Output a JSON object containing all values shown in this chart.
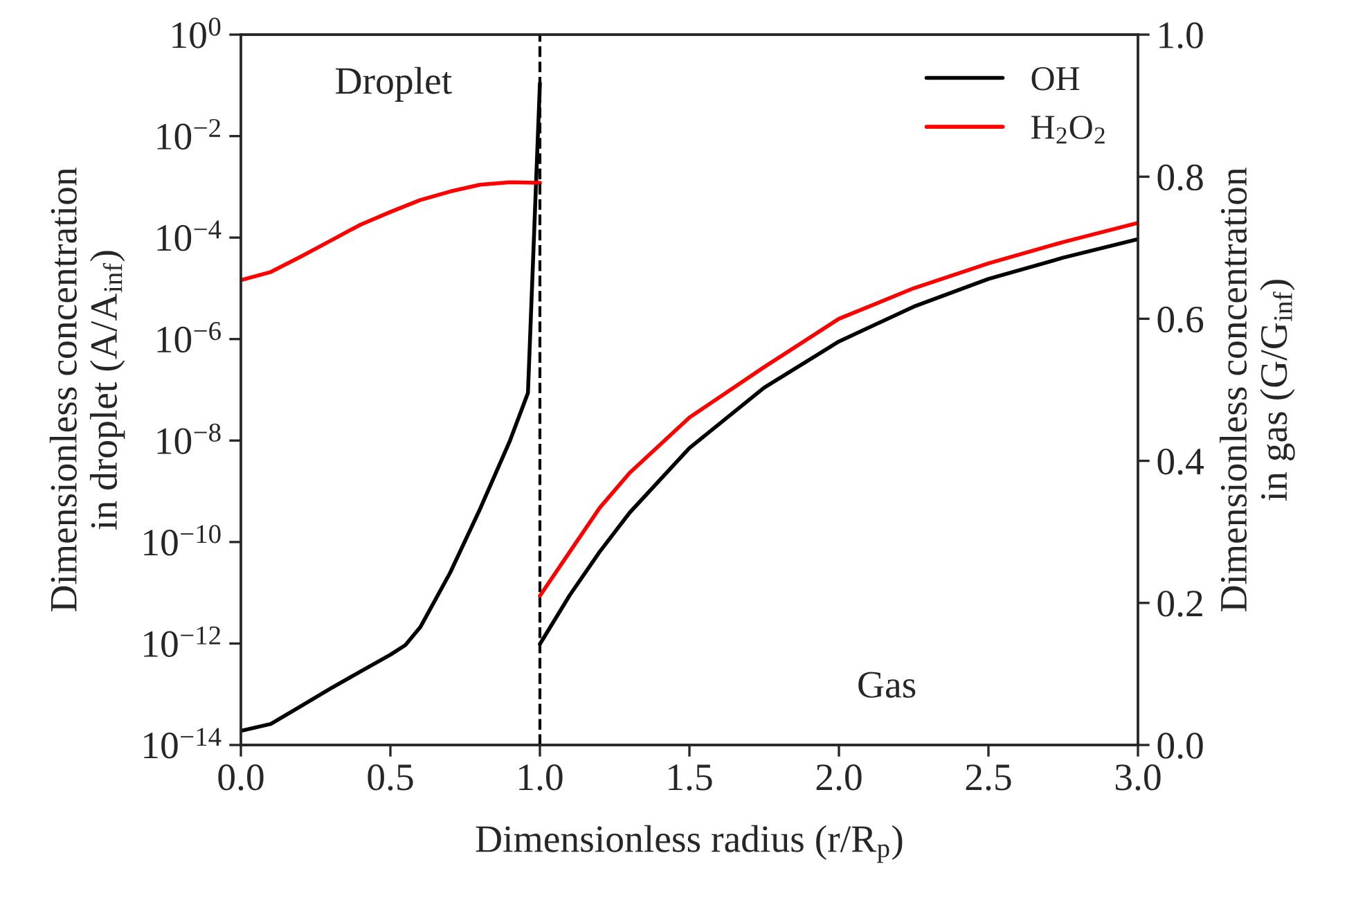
{
  "chart_data": {
    "type": "line",
    "xlabel": "Dimensionless radius (r/R$_{p}$)",
    "ylabel": "Dimensionless concentration\nin droplet (A/A$_{inf}$)",
    "y2label": "Dimensionless concentration\nin gas (G/G$_{inf}$)",
    "log": "y",
    "xlim": [
      0.0,
      3.0
    ],
    "xticks": [
      {
        "value": 0,
        "label": "0.0"
      },
      0.5,
      {
        "value": 1,
        "label": "1.0"
      },
      1.5,
      {
        "value": 2,
        "label": "2.0"
      },
      2.5,
      {
        "value": 3,
        "label": "3.0"
      }
    ],
    "ylim": [
      1e-14,
      1
    ],
    "yticks": [
      {
        "value": 1e-14,
        "label": "10$^{−14}$"
      },
      {
        "value": 1e-12,
        "label": "10$^{−12}$"
      },
      {
        "value": 1e-10,
        "label": "10$^{−10}$"
      },
      {
        "value": 1e-08,
        "label": "10$^{−8}$"
      },
      {
        "value": 1e-06,
        "label": "10$^{−6}$"
      },
      {
        "value": 0.0001,
        "label": "10$^{−4}$"
      },
      {
        "value": 0.01,
        "label": "10$^{−2}$"
      },
      {
        "value": 1,
        "label": "10$^{0}$"
      }
    ],
    "y2lim": [
      0.0,
      1.0
    ],
    "y2ticks": [
      {
        "value": 0,
        "label": "0.0"
      },
      0.2,
      0.4,
      0.6,
      0.8,
      {
        "value": 1,
        "label": "1.0"
      }
    ],
    "series": [
      {
        "name": "OH",
        "color": "#000000",
        "x": [
          0,
          0.1,
          0.2,
          0.3,
          0.4,
          0.5,
          0.55,
          0.6,
          0.7,
          0.8,
          0.9,
          0.96,
          1.0
        ],
        "values": [
          1.9e-14,
          2.6e-14,
          5.8e-14,
          1.3e-13,
          2.8e-13,
          6e-13,
          9.3e-13,
          2.1e-12,
          2.5e-11,
          4.5e-10,
          1e-08,
          8.7e-08,
          0.11
        ]
      },
      {
        "name": "H$_{2}$O$_{2}$",
        "color": "#ff0000",
        "x": [
          0,
          0.1,
          0.2,
          0.3,
          0.4,
          0.5,
          0.6,
          0.7,
          0.8,
          0.9,
          1.0
        ],
        "values": [
          1.45e-05,
          2.1e-05,
          4.2e-05,
          8.7e-05,
          0.00018,
          0.00032,
          0.00055,
          0.00081,
          0.0011,
          0.00123,
          0.0012
        ]
      },
      {
        "axis": "y2",
        "color": "#000000",
        "x": [
          1.0,
          1.1,
          1.2,
          1.3,
          1.5,
          1.75,
          2.0,
          2.25,
          2.5,
          2.75,
          3.0
        ],
        "values": [
          0.142,
          0.211,
          0.272,
          0.327,
          0.418,
          0.503,
          0.568,
          0.617,
          0.656,
          0.686,
          0.712
        ]
      },
      {
        "axis": "y2",
        "color": "#ff0000",
        "x": [
          1.0,
          1.1,
          1.2,
          1.3,
          1.5,
          1.75,
          2.0,
          2.25,
          2.5,
          2.75,
          3.0
        ],
        "values": [
          0.21,
          0.272,
          0.334,
          0.383,
          0.461,
          0.532,
          0.6,
          0.643,
          0.678,
          0.708,
          0.735
        ]
      }
    ],
    "ref_lines": [
      {
        "axis": "x",
        "value": 1.0,
        "color": "#000000",
        "line_style": "dashed"
      }
    ],
    "annotations": [
      "Droplet",
      "Gas"
    ],
    "legend": "top right",
    "grid": false
  }
}
